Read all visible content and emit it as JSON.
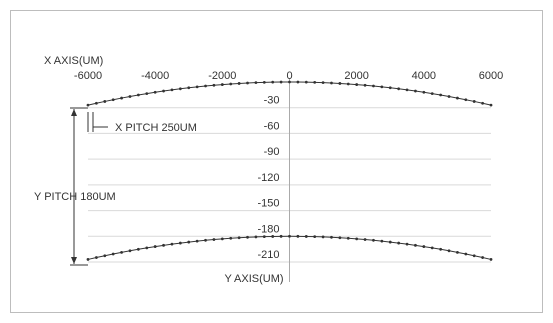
{
  "chart_data": {
    "type": "scatter",
    "title": "",
    "xlabel": "X AXIS(UM)",
    "ylabel": "Y AXIS(UM)",
    "xlim": [
      -6000,
      6000
    ],
    "ylim": [
      -210,
      0
    ],
    "x_ticks": [
      "-6000",
      "-4000",
      "-2000",
      "0",
      "2000",
      "4000",
      "6000"
    ],
    "y_ticks": [
      "-30",
      "-60",
      "-90",
      "-120",
      "-150",
      "-180",
      "-210"
    ],
    "grid": true,
    "annotations": {
      "x_pitch": "X PITCH 250UM",
      "y_pitch": "Y PITCH 180UM"
    },
    "series": [
      {
        "x_start": -6000,
        "x_end": 6000,
        "x_step": 250,
        "y_at_center": 0,
        "y_at_edges": -27,
        "color": "#333333"
      },
      {
        "x_start": -6000,
        "x_end": 6000,
        "x_step": 250,
        "y_at_center": -180,
        "y_at_edges": -207,
        "color": "#333333"
      }
    ]
  }
}
